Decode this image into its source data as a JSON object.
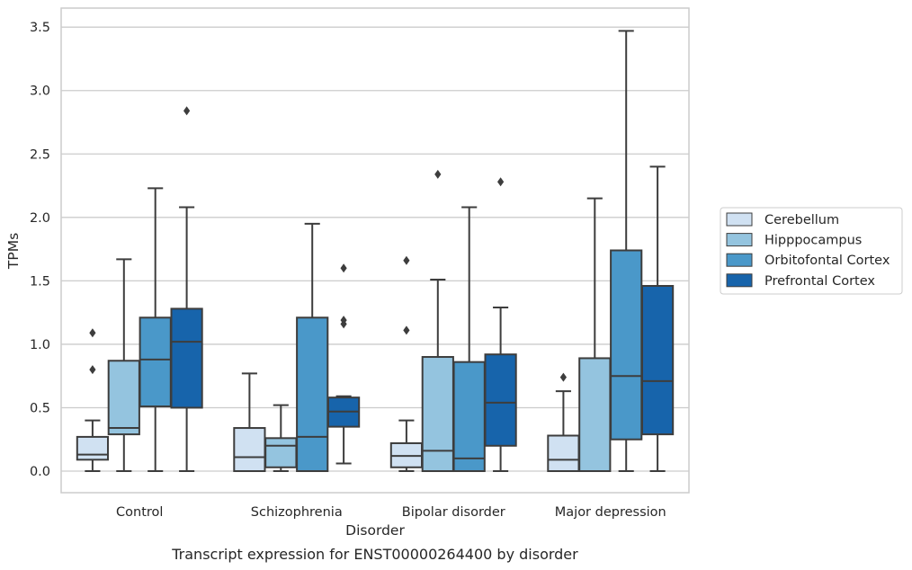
{
  "chart_data": {
    "type": "box",
    "caption": "Transcript expression for ENST00000264400 by disorder",
    "xlabel": "Disorder",
    "ylabel": "TPMs",
    "ylim": [
      -0.17,
      3.65
    ],
    "yticks": [
      "0.0",
      "0.5",
      "1.0",
      "1.5",
      "2.0",
      "2.5",
      "3.0",
      "3.5"
    ],
    "grid": "horizontal",
    "legend_position": "right",
    "categories": [
      "Control",
      "Schizophrenia",
      "Bipolar disorder",
      "Major depression"
    ],
    "series": [
      {
        "name": "Cerebellum",
        "color": "#d0e1f2",
        "boxes": [
          {
            "whisker_low": 0.0,
            "q1": 0.09,
            "median": 0.13,
            "q3": 0.27,
            "whisker_high": 0.4,
            "outliers": [
              0.8,
              1.09
            ]
          },
          {
            "whisker_low": 0.0,
            "q1": 0.0,
            "median": 0.11,
            "q3": 0.34,
            "whisker_high": 0.77,
            "outliers": []
          },
          {
            "whisker_low": 0.0,
            "q1": 0.03,
            "median": 0.12,
            "q3": 0.22,
            "whisker_high": 0.4,
            "outliers": [
              1.11,
              1.66
            ]
          },
          {
            "whisker_low": 0.0,
            "q1": 0.0,
            "median": 0.09,
            "q3": 0.28,
            "whisker_high": 0.63,
            "outliers": [
              0.74
            ]
          }
        ]
      },
      {
        "name": "Hipppocampus",
        "color": "#94c4df",
        "boxes": [
          {
            "whisker_low": 0.0,
            "q1": 0.29,
            "median": 0.34,
            "q3": 0.87,
            "whisker_high": 1.67,
            "outliers": []
          },
          {
            "whisker_low": 0.0,
            "q1": 0.03,
            "median": 0.2,
            "q3": 0.26,
            "whisker_high": 0.52,
            "outliers": []
          },
          {
            "whisker_low": 0.0,
            "q1": 0.0,
            "median": 0.16,
            "q3": 0.9,
            "whisker_high": 1.51,
            "outliers": [
              2.34
            ]
          },
          {
            "whisker_low": 0.0,
            "q1": 0.0,
            "median": 0.0,
            "q3": 0.89,
            "whisker_high": 2.15,
            "outliers": []
          }
        ]
      },
      {
        "name": "Orbitofontal Cortex",
        "color": "#4a98c9",
        "boxes": [
          {
            "whisker_low": 0.0,
            "q1": 0.51,
            "median": 0.88,
            "q3": 1.21,
            "whisker_high": 2.23,
            "outliers": []
          },
          {
            "whisker_low": 0.0,
            "q1": 0.0,
            "median": 0.27,
            "q3": 1.21,
            "whisker_high": 1.95,
            "outliers": []
          },
          {
            "whisker_low": 0.0,
            "q1": 0.0,
            "median": 0.1,
            "q3": 0.86,
            "whisker_high": 2.08,
            "outliers": []
          },
          {
            "whisker_low": 0.0,
            "q1": 0.25,
            "median": 0.75,
            "q3": 1.74,
            "whisker_high": 3.47,
            "outliers": []
          }
        ]
      },
      {
        "name": "Prefrontal Cortex",
        "color": "#1764ab",
        "boxes": [
          {
            "whisker_low": 0.0,
            "q1": 0.5,
            "median": 1.02,
            "q3": 1.28,
            "whisker_high": 2.08,
            "outliers": [
              2.84
            ]
          },
          {
            "whisker_low": 0.06,
            "q1": 0.35,
            "median": 0.47,
            "q3": 0.58,
            "whisker_high": 0.59,
            "outliers": [
              1.16,
              1.19,
              1.6
            ]
          },
          {
            "whisker_low": 0.0,
            "q1": 0.2,
            "median": 0.54,
            "q3": 0.92,
            "whisker_high": 1.29,
            "outliers": [
              2.28
            ]
          },
          {
            "whisker_low": 0.0,
            "q1": 0.29,
            "median": 0.71,
            "q3": 1.46,
            "whisker_high": 2.4,
            "outliers": []
          }
        ]
      }
    ]
  }
}
